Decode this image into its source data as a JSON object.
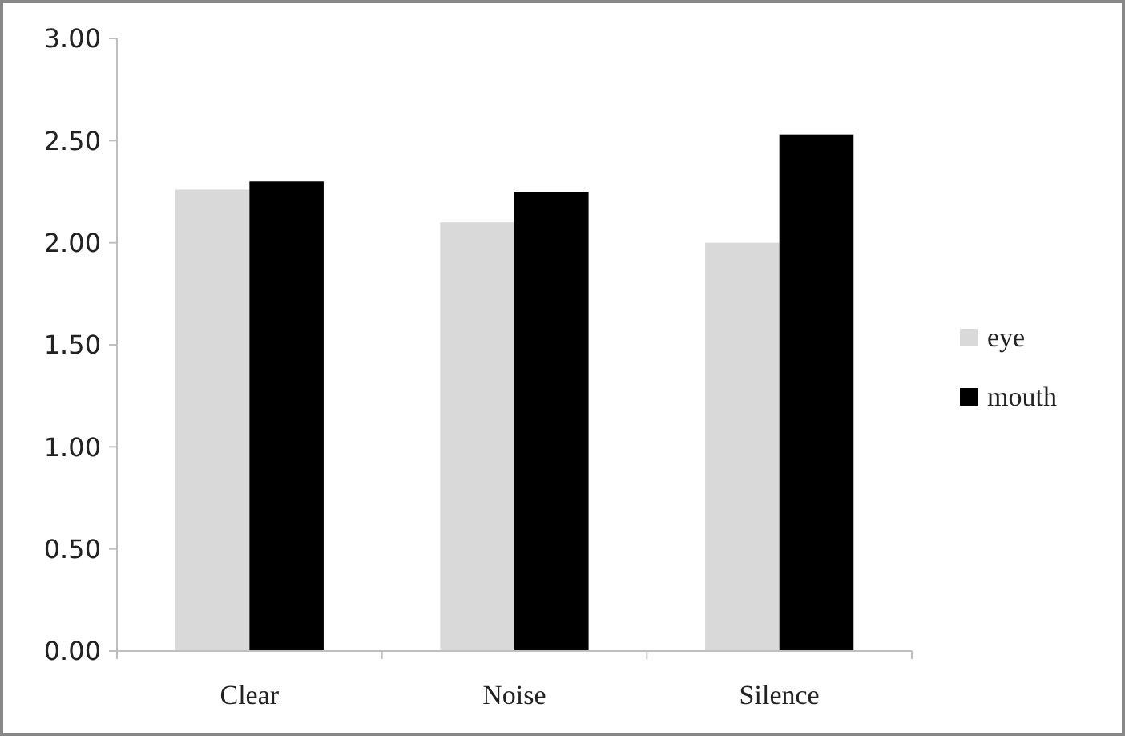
{
  "chart_data": {
    "type": "bar",
    "categories": [
      "Clear",
      "Noise",
      "Silence"
    ],
    "series": [
      {
        "name": "eye",
        "color": "#d9d9d9",
        "values": [
          2.26,
          2.1,
          2.0
        ]
      },
      {
        "name": "mouth",
        "color": "#000000",
        "values": [
          2.3,
          2.25,
          2.53
        ]
      }
    ],
    "ylim": [
      0,
      3
    ],
    "yticks": [
      {
        "value": 0,
        "label": "0.00"
      },
      {
        "value": 0.5,
        "label": "0.50"
      },
      {
        "value": 1,
        "label": "1.00"
      },
      {
        "value": 1.5,
        "label": "1.50"
      },
      {
        "value": 2,
        "label": "2.00"
      },
      {
        "value": 2.5,
        "label": "2.50"
      },
      {
        "value": 3,
        "label": "3.00"
      }
    ],
    "grid": false,
    "legend": "right"
  }
}
